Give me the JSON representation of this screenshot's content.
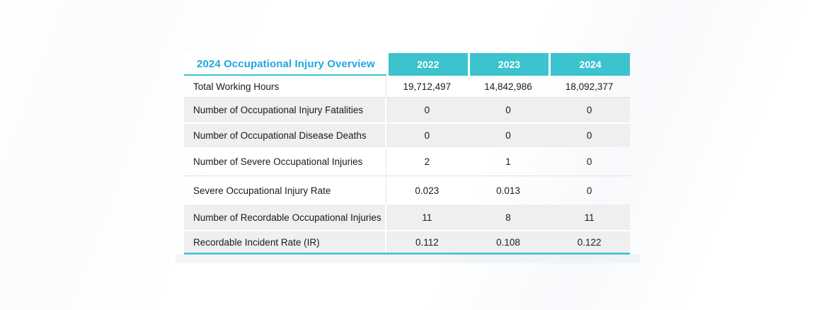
{
  "table": {
    "title": "2024 Occupational Injury Overview",
    "columns": [
      "2022",
      "2023",
      "2024"
    ],
    "rows": [
      {
        "label": "Total Working Hours",
        "values": [
          "19,712,497",
          "14,842,986",
          "18,092,377"
        ]
      },
      {
        "label": "Number of Occupational Injury Fatalities",
        "values": [
          "0",
          "0",
          "0"
        ]
      },
      {
        "label": "Number of Occupational Disease Deaths",
        "values": [
          "0",
          "0",
          "0"
        ]
      },
      {
        "label": "Number of Severe Occupational Injuries",
        "values": [
          "2",
          "1",
          "0"
        ]
      },
      {
        "label": "Severe Occupational Injury Rate",
        "values": [
          "0.023",
          "0.013",
          "0"
        ]
      },
      {
        "label": "Number of Recordable Occupational Injuries",
        "values": [
          "11",
          "8",
          "11"
        ]
      },
      {
        "label": "Recordable Incident Rate (IR)",
        "values": [
          "0.112",
          "0.108",
          "0.122"
        ]
      }
    ]
  },
  "colors": {
    "accent_teal": "#3CC3CE",
    "title_blue": "#22A7E0",
    "row_gray": "#EFEFEF",
    "text_dark": "#1A1A1A",
    "header_text": "#FFFFFF"
  }
}
